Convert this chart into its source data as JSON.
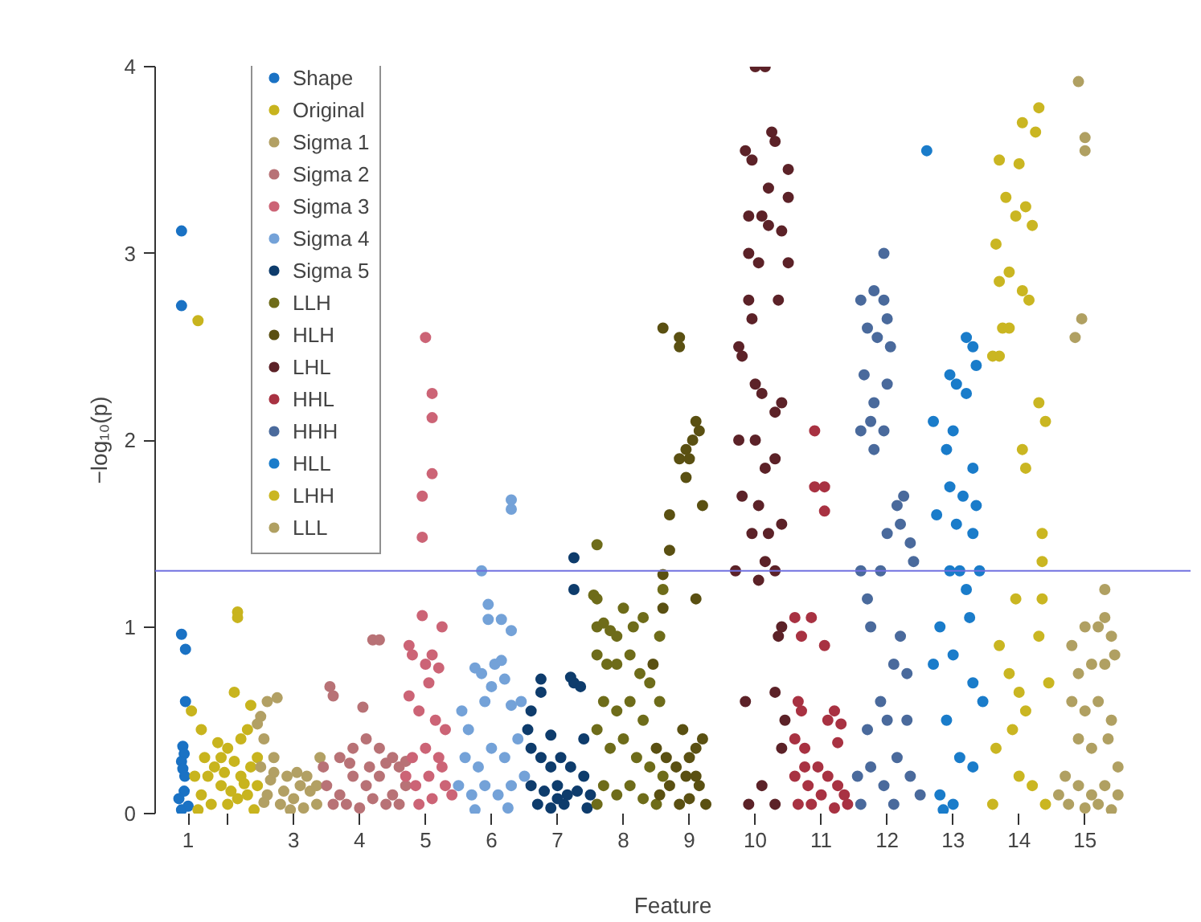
{
  "chart_data": {
    "type": "scatter",
    "xlabel": "Feature",
    "ylabel": "−log₁₀(p)",
    "xlim": [
      0.9,
      16.6
    ],
    "ylim": [
      0,
      4
    ],
    "xticks": [
      {
        "value": 1.4,
        "label": "1"
      },
      {
        "value": 2,
        "label": null
      },
      3,
      4,
      5,
      6,
      7,
      8,
      9,
      10,
      11,
      12,
      13,
      14,
      15
    ],
    "yticks": [
      0,
      1,
      2,
      3,
      4
    ],
    "legend": "top left",
    "marker": "circle",
    "ref_lines": [
      {
        "axis": "y",
        "value": 1.3,
        "label": null,
        "color": "#7070e0"
      }
    ],
    "series": [
      {
        "name": "Shape",
        "color": "#1a72c4",
        "x": [
          1.3,
          1.3,
          1.3,
          1.36,
          1.36,
          1.32,
          1.34,
          1.3,
          1.32,
          1.26,
          1.34,
          1.4,
          1.35,
          1.3
        ],
        "values": [
          3.12,
          2.72,
          0.96,
          0.88,
          0.6,
          0.36,
          0.32,
          0.28,
          0.24,
          0.08,
          0.12,
          0.04,
          0.2,
          0.02
        ]
      },
      {
        "name": "Original",
        "color": "#c8b41e",
        "x": [
          1.55,
          2.15,
          2.15,
          1.45,
          1.6,
          2.1,
          2.35,
          1.7,
          1.8,
          1.9,
          2.0,
          2.2,
          2.3,
          1.6,
          1.75,
          1.9,
          2.05,
          2.2,
          2.35,
          2.45,
          1.5,
          1.65,
          1.85,
          2.0,
          2.15,
          2.3,
          2.45,
          1.55,
          2.4,
          1.95,
          2.1,
          2.25
        ],
        "values": [
          2.64,
          1.08,
          1.05,
          0.55,
          0.45,
          0.65,
          0.58,
          0.2,
          0.25,
          0.3,
          0.35,
          0.4,
          0.45,
          0.1,
          0.05,
          0.15,
          0.12,
          0.2,
          0.25,
          0.3,
          0.2,
          0.3,
          0.38,
          0.05,
          0.08,
          0.1,
          0.15,
          0.02,
          0.02,
          0.22,
          0.28,
          0.16
        ]
      },
      {
        "name": "Sigma 1",
        "color": "#b2a064",
        "x": [
          2.6,
          2.75,
          2.5,
          2.55,
          2.45,
          2.7,
          2.9,
          3.1,
          3.4,
          2.6,
          2.8,
          3.0,
          3.2,
          3.35,
          2.5,
          2.65,
          2.85,
          3.05,
          3.25,
          2.95,
          3.15,
          2.7,
          3.35,
          2.55
        ],
        "values": [
          0.6,
          0.62,
          0.52,
          0.4,
          0.48,
          0.3,
          0.2,
          0.15,
          0.3,
          0.1,
          0.05,
          0.08,
          0.2,
          0.05,
          0.25,
          0.18,
          0.12,
          0.22,
          0.12,
          0.02,
          0.03,
          0.22,
          0.15,
          0.06
        ]
      },
      {
        "name": "Sigma 2",
        "color": "#b87276",
        "x": [
          3.55,
          3.6,
          4.2,
          4.3,
          4.05,
          3.7,
          3.9,
          4.1,
          4.3,
          4.5,
          4.6,
          3.5,
          3.7,
          3.9,
          4.1,
          4.3,
          4.5,
          4.7,
          3.6,
          3.8,
          4.0,
          4.2,
          4.4,
          4.6,
          3.45,
          4.7,
          3.85,
          4.15,
          4.4
        ],
        "values": [
          0.68,
          0.63,
          0.93,
          0.93,
          0.57,
          0.3,
          0.35,
          0.4,
          0.35,
          0.3,
          0.25,
          0.15,
          0.1,
          0.2,
          0.15,
          0.2,
          0.1,
          0.15,
          0.05,
          0.05,
          0.03,
          0.08,
          0.05,
          0.05,
          0.25,
          0.28,
          0.27,
          0.25,
          0.27
        ]
      },
      {
        "name": "Sigma 3",
        "color": "#cc6476",
        "x": [
          5.0,
          5.1,
          5.1,
          4.95,
          5.1,
          4.95,
          4.95,
          4.75,
          4.8,
          5.25,
          5.1,
          5.0,
          5.2,
          4.75,
          5.05,
          4.9,
          5.15,
          5.3,
          4.8,
          5.0,
          5.2,
          4.7,
          4.85,
          5.05,
          5.25,
          4.9,
          5.1,
          5.3,
          5.4
        ],
        "values": [
          2.55,
          2.25,
          2.12,
          1.7,
          1.82,
          1.48,
          1.06,
          0.9,
          0.85,
          1.0,
          0.85,
          0.8,
          0.78,
          0.63,
          0.7,
          0.55,
          0.5,
          0.45,
          0.3,
          0.35,
          0.3,
          0.2,
          0.15,
          0.2,
          0.25,
          0.05,
          0.08,
          0.15,
          0.1
        ]
      },
      {
        "name": "Sigma 4",
        "color": "#74a2d8",
        "x": [
          6.3,
          6.3,
          5.85,
          5.95,
          5.95,
          6.15,
          6.3,
          5.75,
          5.85,
          6.05,
          6.15,
          6.0,
          6.2,
          5.55,
          5.65,
          5.9,
          6.3,
          6.45,
          5.6,
          5.8,
          6.0,
          6.2,
          6.4,
          5.5,
          5.7,
          5.9,
          6.1,
          6.3,
          6.5,
          5.75,
          6.25
        ],
        "values": [
          1.68,
          1.63,
          1.3,
          1.12,
          1.04,
          1.04,
          0.98,
          0.78,
          0.75,
          0.8,
          0.82,
          0.68,
          0.72,
          0.55,
          0.45,
          0.6,
          0.58,
          0.6,
          0.3,
          0.25,
          0.35,
          0.3,
          0.4,
          0.15,
          0.1,
          0.15,
          0.1,
          0.15,
          0.2,
          0.02,
          0.03
        ]
      },
      {
        "name": "Sigma 5",
        "color": "#0e3c6c",
        "x": [
          7.25,
          7.25,
          6.75,
          6.75,
          7.2,
          7.25,
          7.35,
          6.6,
          6.55,
          6.9,
          7.4,
          6.6,
          6.75,
          6.9,
          7.05,
          7.2,
          7.4,
          6.6,
          6.8,
          7.0,
          7.15,
          7.3,
          7.5,
          6.7,
          6.9,
          7.1,
          7.45,
          7.0
        ],
        "values": [
          1.37,
          1.2,
          0.72,
          0.65,
          0.73,
          0.7,
          0.68,
          0.55,
          0.45,
          0.42,
          0.4,
          0.35,
          0.3,
          0.25,
          0.3,
          0.25,
          0.2,
          0.15,
          0.12,
          0.15,
          0.1,
          0.12,
          0.1,
          0.05,
          0.03,
          0.05,
          0.03,
          0.08
        ]
      },
      {
        "name": "LLH",
        "color": "#6e6c1a",
        "x": [
          7.6,
          7.55,
          7.6,
          7.6,
          7.7,
          7.8,
          7.9,
          8.0,
          8.15,
          8.3,
          7.6,
          7.75,
          7.9,
          8.1,
          8.25,
          8.4,
          8.55,
          7.7,
          7.9,
          8.1,
          8.3,
          7.6,
          7.8,
          8.0,
          8.2,
          8.4,
          8.6,
          7.7,
          7.9,
          8.1,
          8.3,
          8.5,
          7.6,
          8.6,
          8.55
        ],
        "values": [
          1.44,
          1.17,
          1.15,
          1.0,
          1.02,
          0.98,
          0.95,
          1.1,
          1.0,
          1.05,
          0.85,
          0.8,
          0.8,
          0.85,
          0.75,
          0.7,
          0.6,
          0.6,
          0.55,
          0.6,
          0.5,
          0.45,
          0.35,
          0.4,
          0.3,
          0.25,
          0.2,
          0.15,
          0.1,
          0.15,
          0.08,
          0.05,
          0.05,
          1.2,
          0.95
        ]
      },
      {
        "name": "HLH",
        "color": "#5a5012",
        "x": [
          8.6,
          8.85,
          8.85,
          9.1,
          9.15,
          8.95,
          9.0,
          8.85,
          9.05,
          8.7,
          8.7,
          9.2,
          8.95,
          8.6,
          9.1,
          8.6,
          8.45,
          8.5,
          8.65,
          8.8,
          8.9,
          9.0,
          9.1,
          9.2,
          8.55,
          8.7,
          8.85,
          9.0,
          9.15,
          9.25,
          8.95,
          9.1
        ],
        "values": [
          2.6,
          2.55,
          2.5,
          2.1,
          2.05,
          1.95,
          1.9,
          1.9,
          2.0,
          1.6,
          1.41,
          1.65,
          1.8,
          1.28,
          1.15,
          1.1,
          0.8,
          0.35,
          0.3,
          0.25,
          0.45,
          0.3,
          0.2,
          0.4,
          0.1,
          0.15,
          0.05,
          0.08,
          0.15,
          0.05,
          0.2,
          0.35
        ]
      },
      {
        "name": "LHL",
        "color": "#5c2228",
        "x": [
          10.0,
          10.15,
          10.25,
          10.3,
          9.85,
          9.95,
          10.5,
          10.2,
          10.5,
          9.9,
          10.1,
          10.2,
          10.4,
          9.9,
          10.05,
          10.5,
          9.9,
          10.35,
          9.95,
          9.75,
          9.8,
          10.0,
          10.1,
          10.4,
          10.3,
          9.75,
          10.0,
          10.15,
          10.3,
          9.8,
          10.05,
          9.95,
          10.2,
          10.4,
          10.15,
          10.3,
          9.7,
          10.05,
          10.3,
          9.85,
          10.4,
          10.35,
          10.45,
          10.1,
          9.9,
          10.3,
          10.4
        ],
        "values": [
          4.0,
          4.0,
          3.65,
          3.6,
          3.55,
          3.5,
          3.45,
          3.35,
          3.3,
          3.2,
          3.2,
          3.15,
          3.12,
          3.0,
          2.95,
          2.95,
          2.75,
          2.75,
          2.65,
          2.5,
          2.45,
          2.3,
          2.25,
          2.2,
          2.15,
          2.0,
          2.0,
          1.85,
          1.9,
          1.7,
          1.65,
          1.5,
          1.5,
          1.55,
          1.35,
          1.3,
          1.3,
          1.25,
          0.65,
          0.6,
          1.0,
          0.95,
          0.5,
          0.15,
          0.05,
          0.05,
          0.35
        ]
      },
      {
        "name": "HHL",
        "color": "#a83242",
        "x": [
          10.9,
          10.9,
          11.05,
          11.05,
          10.85,
          10.6,
          10.7,
          10.65,
          10.7,
          10.6,
          10.75,
          11.1,
          11.2,
          11.3,
          11.25,
          11.05,
          10.6,
          10.8,
          10.95,
          11.1,
          11.25,
          10.65,
          10.85,
          11.0,
          11.2,
          11.35,
          10.75,
          11.4
        ],
        "values": [
          2.05,
          1.75,
          1.75,
          1.62,
          1.05,
          1.05,
          0.95,
          0.6,
          0.55,
          0.4,
          0.35,
          0.5,
          0.55,
          0.48,
          0.38,
          0.9,
          0.2,
          0.15,
          0.25,
          0.2,
          0.15,
          0.05,
          0.05,
          0.1,
          0.03,
          0.1,
          0.25,
          0.05
        ]
      },
      {
        "name": "HHH",
        "color": "#4a6a9c",
        "x": [
          11.95,
          11.8,
          11.95,
          11.6,
          12.0,
          11.7,
          11.85,
          12.05,
          11.65,
          12.0,
          11.8,
          11.6,
          11.75,
          11.95,
          11.8,
          12.15,
          12.25,
          12.0,
          12.2,
          12.35,
          11.9,
          12.4,
          11.7,
          11.6,
          11.75,
          12.2,
          12.1,
          12.3,
          11.9,
          12.0,
          11.7,
          12.3,
          11.55,
          11.75,
          11.95,
          12.15,
          12.35,
          12.5,
          11.6,
          12.1
        ],
        "values": [
          3.0,
          2.8,
          2.75,
          2.75,
          2.65,
          2.6,
          2.55,
          2.5,
          2.35,
          2.3,
          2.2,
          2.05,
          2.1,
          2.05,
          1.95,
          1.65,
          1.7,
          1.5,
          1.55,
          1.45,
          1.3,
          1.35,
          1.15,
          1.3,
          1.0,
          0.95,
          0.8,
          0.75,
          0.6,
          0.5,
          0.45,
          0.5,
          0.2,
          0.25,
          0.15,
          0.3,
          0.2,
          0.1,
          0.05,
          0.05
        ]
      },
      {
        "name": "HLL",
        "color": "#1a7cca",
        "x": [
          12.6,
          13.2,
          13.3,
          12.95,
          13.35,
          13.05,
          12.7,
          13.2,
          13.0,
          12.9,
          13.3,
          12.95,
          13.15,
          13.35,
          13.3,
          12.75,
          13.05,
          13.4,
          12.95,
          13.1,
          13.25,
          13.2,
          12.8,
          13.0,
          13.3,
          13.45,
          12.7,
          12.9,
          13.1,
          13.3,
          12.8,
          13.0,
          12.85
        ],
        "values": [
          3.55,
          2.55,
          2.5,
          2.35,
          2.4,
          2.3,
          2.1,
          2.25,
          2.05,
          1.95,
          1.85,
          1.75,
          1.7,
          1.65,
          1.5,
          1.6,
          1.55,
          1.3,
          1.3,
          1.3,
          1.05,
          1.2,
          1.0,
          0.85,
          0.7,
          0.6,
          0.8,
          0.5,
          0.3,
          0.25,
          0.1,
          0.05,
          0.02
        ]
      },
      {
        "name": "LHH",
        "color": "#cab622",
        "x": [
          14.3,
          14.05,
          14.25,
          13.7,
          14.0,
          13.8,
          14.1,
          13.95,
          14.2,
          13.65,
          13.85,
          14.05,
          14.15,
          13.7,
          13.75,
          13.85,
          13.6,
          13.7,
          14.3,
          14.4,
          14.05,
          14.1,
          14.35,
          14.35,
          13.95,
          14.35,
          14.3,
          13.7,
          13.85,
          14.1,
          13.9,
          13.65,
          14.0,
          14.2,
          13.6,
          14.4,
          14.0,
          14.45
        ],
        "values": [
          3.78,
          3.7,
          3.65,
          3.5,
          3.48,
          3.3,
          3.25,
          3.2,
          3.15,
          3.05,
          2.9,
          2.8,
          2.75,
          2.85,
          2.6,
          2.6,
          2.45,
          2.45,
          2.2,
          2.1,
          1.95,
          1.85,
          1.5,
          1.35,
          1.15,
          1.15,
          0.95,
          0.9,
          0.75,
          0.55,
          0.45,
          0.35,
          0.2,
          0.15,
          0.05,
          0.05,
          0.65,
          0.7
        ]
      },
      {
        "name": "LLL",
        "color": "#b0a062",
        "x": [
          14.9,
          15.0,
          15.0,
          14.95,
          14.85,
          15.3,
          15.3,
          14.8,
          15.0,
          15.2,
          15.4,
          14.9,
          15.1,
          15.3,
          15.45,
          14.8,
          15.0,
          15.2,
          15.4,
          14.9,
          15.1,
          15.35,
          14.7,
          14.9,
          15.1,
          15.3,
          15.5,
          14.75,
          15.0,
          15.2,
          15.4,
          14.6,
          15.5
        ],
        "values": [
          3.92,
          3.62,
          3.55,
          2.65,
          2.55,
          1.2,
          1.05,
          0.9,
          1.0,
          1.0,
          0.95,
          0.75,
          0.8,
          0.8,
          0.85,
          0.6,
          0.55,
          0.6,
          0.5,
          0.4,
          0.35,
          0.4,
          0.2,
          0.15,
          0.1,
          0.15,
          0.1,
          0.05,
          0.03,
          0.05,
          0.02,
          0.1,
          0.25
        ]
      }
    ]
  }
}
